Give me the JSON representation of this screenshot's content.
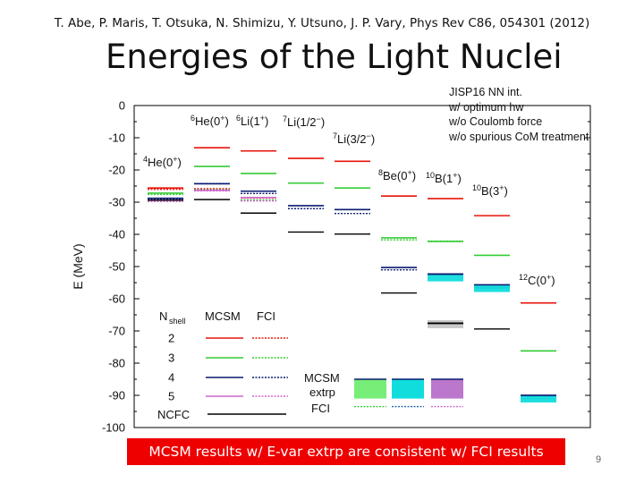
{
  "header": {
    "citation": "T. Abe, P. Maris, T. Otsuka, N. Shimizu, Y. Utsuno, J. P. Vary, Phys Rev C86, 054301 (2012)",
    "title": "Energies of the Light Nuclei"
  },
  "notes": {
    "lines": [
      "JISP16 NN int.",
      "w/ optimum hw",
      "w/o Coulomb force",
      "w/o spurious CoM treatment"
    ]
  },
  "banner": {
    "text": "MCSM results w/ E-var extrp are consistent w/ FCI results"
  },
  "page": {
    "number": "9"
  },
  "colors": {
    "n2": "#e8140a",
    "n3": "#33cc33",
    "n4": "#0a1a70",
    "n5": "#cc66cc",
    "ncfc": "#000000",
    "extrap_gray": "#c8c8c8",
    "extrap_green": "#77ee77",
    "extrap_cyan": "#11dddd",
    "extrap_purple": "#bb77cc",
    "extrap_blue": "#2299cc",
    "fci_dotted": "#2266aa"
  },
  "chart_data": {
    "type": "level-scheme",
    "ylabel": "E (MeV)",
    "ylim": [
      -100,
      0
    ],
    "yticks": [
      0,
      -10,
      -20,
      -30,
      -40,
      -50,
      -60,
      -70,
      -80,
      -90,
      -100
    ],
    "ytick_labels": [
      "0",
      "-10",
      "-20",
      "-30",
      "-40",
      "-50",
      "-60",
      "-70",
      "-80",
      "-90",
      "-100"
    ],
    "nuclei": [
      {
        "label_main": "4He(0",
        "label_sup": "+",
        "label_end": ")",
        "mcsm": {
          "n2": -25.6,
          "n3": -27.2,
          "n4": -28.8,
          "n5": -29.4
        },
        "fci": {
          "n2": -25.6,
          "n3": -27.2,
          "n4": -28.8,
          "n5": -29.4
        },
        "ncfc": -29.4
      },
      {
        "label_main": "6He(0",
        "label_sup": "+",
        "label_end": ")",
        "mcsm": {
          "n2": -13.1,
          "n3": -18.9,
          "n4": -24.3,
          "n5": -26.3
        },
        "fci": {
          "n2": -25.4,
          "n3": -25.7,
          "n4": -23.8,
          "n5": -26.1
        },
        "ncfc": -29.2
      },
      {
        "label_main": "6Li(1",
        "label_sup": "+",
        "label_end": ")",
        "mcsm": {
          "n2": -14.1,
          "n3": -21.1,
          "n4": -26.6,
          "n5": -28.6
        },
        "fci": {
          "n2": -28.3,
          "n3": -28.9,
          "n4": -26.9,
          "n5": -29.2
        },
        "ncfc": -33.4
      },
      {
        "label_main": "7Li(1/2",
        "label_sup": "−",
        "label_end": ")",
        "mcsm": {
          "n2": -16.4,
          "n3": -24.1,
          "n4": -31.1
        },
        "fci": {
          "n4": -31.6
        },
        "ncfc": -39.3
      },
      {
        "label_main": "7Li(3/2",
        "label_sup": "−",
        "label_end": ")",
        "mcsm": {
          "n2": -17.3,
          "n3": -25.6,
          "n4": -32.3
        },
        "fci": {
          "n4": -33.1
        },
        "ncfc": -39.9
      },
      {
        "label_main": "8Be(0",
        "label_sup": "+",
        "label_end": ")",
        "mcsm": {
          "n2": -28.1,
          "n3": -41.1,
          "n4": -50.3
        },
        "fci": {
          "n3": -41.3,
          "n4": -50.6
        },
        "ncfc": -58.2
      },
      {
        "label_main": "10B(1",
        "label_sup": "+",
        "label_end": ")",
        "mcsm": {
          "n2": -28.9,
          "n3": -42.2,
          "n4": -52.3
        },
        "fci": {
          "n3": -41.7
        },
        "extrap": -53.5,
        "extrap2": -67.2
      },
      {
        "label_main": "10B(3",
        "label_sup": "+",
        "label_end": ")",
        "mcsm": {
          "n2": -34.2,
          "n3": -46.5,
          "n4": -56.6
        },
        "extrap": -56.8,
        "ncfc": -69.4
      },
      {
        "label_main": "12C(0",
        "label_sup": "+",
        "label_end": ")",
        "mcsm": {
          "n2": -61.3,
          "n3": -76.2,
          "n4": -90.3
        },
        "fci": {
          "n4": -90.6
        },
        "extrap": -91.1
      }
    ],
    "shell_legend": {
      "header_nshell": "N",
      "header_sub": "shell",
      "header_mcsm": "MCSM",
      "header_fci": "FCI",
      "rows": [
        "2",
        "3",
        "4",
        "5"
      ],
      "extrap_label_1": "MCSM",
      "extrap_label_2": "extrp",
      "fci_label": "FCI",
      "ncfc_label": "NCFC"
    },
    "extrap_bars": [
      {
        "color": "extrap_green",
        "top": -85,
        "bottom": -93
      },
      {
        "color": "extrap_cyan",
        "top": -85,
        "bottom": -93
      },
      {
        "color": "extrap_cyan",
        "top": -85,
        "bottom": -93
      },
      {
        "color": "extrap_purple",
        "top": -85,
        "bottom": -93
      }
    ]
  }
}
